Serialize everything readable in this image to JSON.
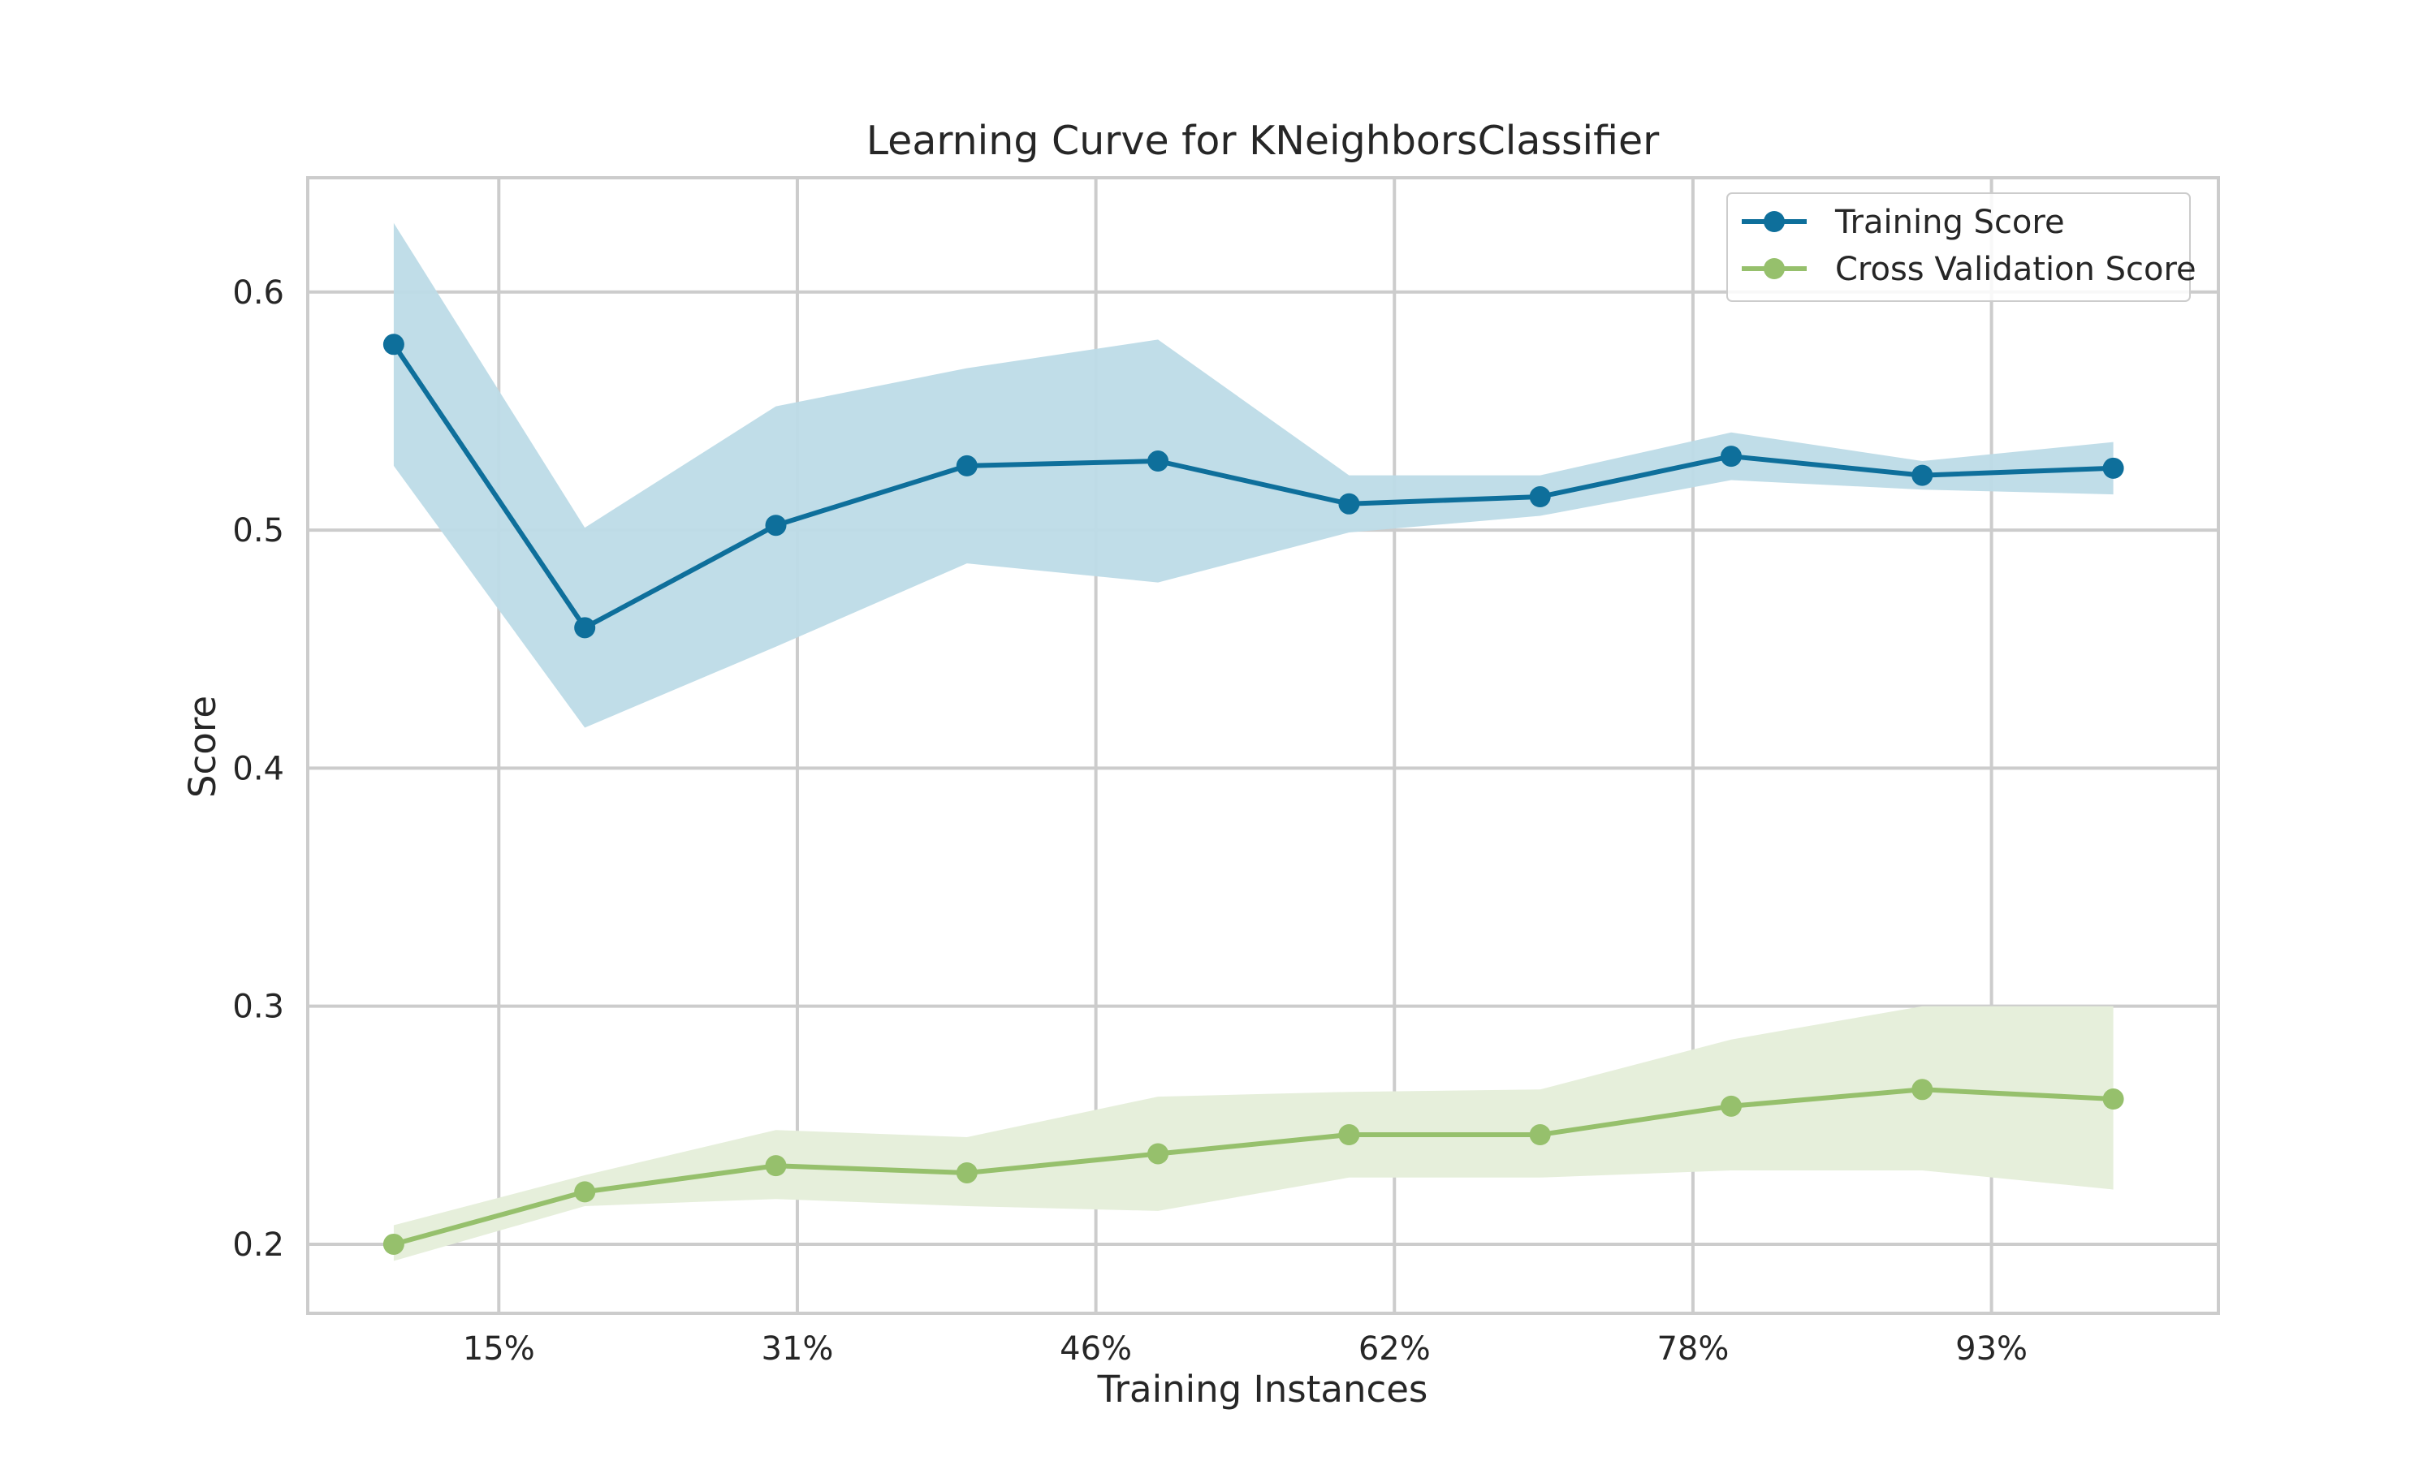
{
  "chart_data": {
    "type": "line",
    "title": "Learning Curve for KNeighborsClassifier",
    "xlabel": "Training Instances",
    "ylabel": "Score",
    "xlim": [
      1,
      11
    ],
    "ylim": [
      0.171,
      0.648
    ],
    "x_ticks": [
      {
        "x": 2,
        "label": "15%"
      },
      {
        "x": 3.5625,
        "label": "31%"
      },
      {
        "x": 5.125,
        "label": "46%"
      },
      {
        "x": 6.6875,
        "label": "62%"
      },
      {
        "x": 8.25,
        "label": "78%"
      },
      {
        "x": 9.8125,
        "label": "93%"
      }
    ],
    "y_ticks": [
      {
        "y": 0.2,
        "label": "0.2"
      },
      {
        "y": 0.3,
        "label": "0.3"
      },
      {
        "y": 0.4,
        "label": "0.4"
      },
      {
        "y": 0.5,
        "label": "0.5"
      },
      {
        "y": 0.6,
        "label": "0.6"
      }
    ],
    "grid": true,
    "legend_position": "top-right",
    "x": [
      1.45,
      2.45,
      3.45,
      4.45,
      5.45,
      6.45,
      7.45,
      8.45,
      9.45,
      10.45
    ],
    "series": [
      {
        "name": "Training Score",
        "color": "#0e6f9b",
        "band_color": "#bddbe7",
        "values": [
          0.578,
          0.459,
          0.502,
          0.527,
          0.529,
          0.511,
          0.514,
          0.531,
          0.523,
          0.526
        ],
        "upper": [
          0.629,
          0.501,
          0.552,
          0.568,
          0.58,
          0.523,
          0.523,
          0.541,
          0.529,
          0.537
        ],
        "lower": [
          0.527,
          0.417,
          0.451,
          0.486,
          0.478,
          0.499,
          0.506,
          0.521,
          0.517,
          0.515
        ]
      },
      {
        "name": "Cross Validation Score",
        "color": "#96c06c",
        "band_color": "#e6efdb",
        "values": [
          0.2,
          0.222,
          0.233,
          0.23,
          0.238,
          0.246,
          0.246,
          0.258,
          0.265,
          0.261
        ],
        "upper": [
          0.208,
          0.229,
          0.248,
          0.245,
          0.262,
          0.264,
          0.265,
          0.286,
          0.3,
          0.3
        ],
        "lower": [
          0.193,
          0.216,
          0.219,
          0.216,
          0.214,
          0.228,
          0.228,
          0.231,
          0.231,
          0.223
        ]
      }
    ]
  }
}
